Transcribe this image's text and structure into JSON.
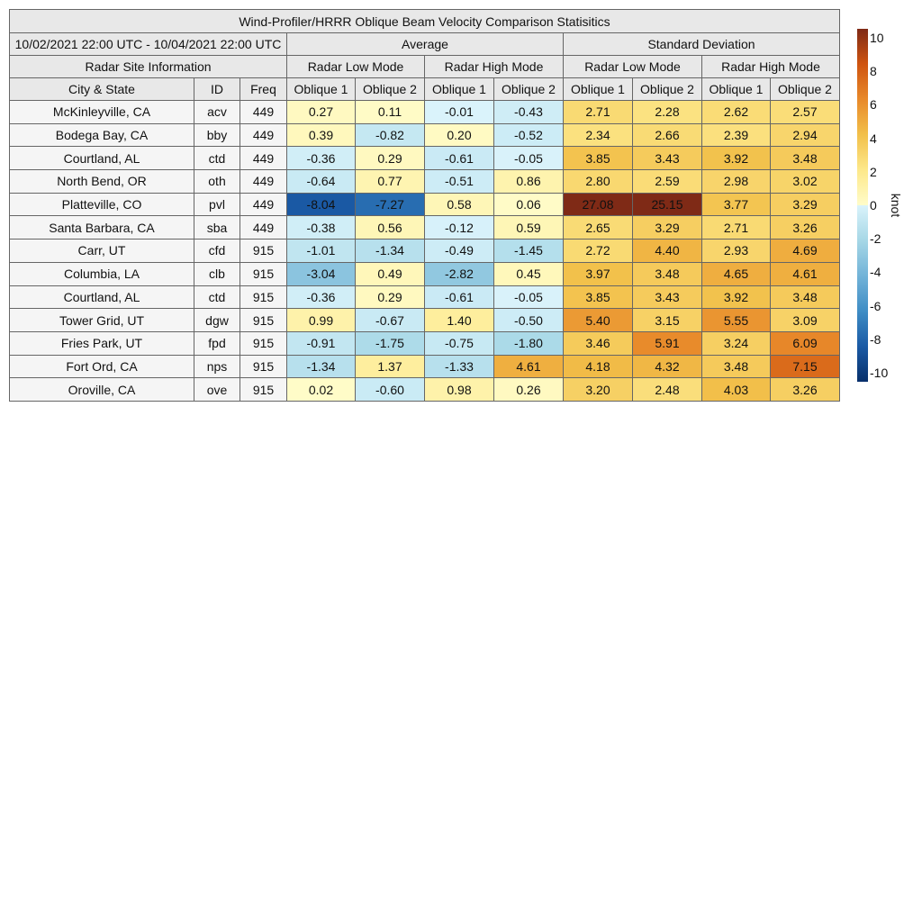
{
  "chart_data": {
    "type": "heatmap",
    "title": "Wind-Profiler/HRRR Oblique Beam Velocity Comparison Statisitics",
    "date_range": "10/02/2021 22:00 UTC - 10/04/2021 22:00 UTC",
    "group_headers": {
      "info": "Radar Site Information",
      "average": "Average",
      "std": "Standard Deviation"
    },
    "mode_headers": [
      "Radar Low Mode",
      "Radar High Mode",
      "Radar Low Mode",
      "Radar High Mode"
    ],
    "columns": [
      "City & State",
      "ID",
      "Freq",
      "Oblique 1",
      "Oblique 2",
      "Oblique 1",
      "Oblique 2",
      "Oblique 1",
      "Oblique 2",
      "Oblique 1",
      "Oblique 2"
    ],
    "rows": [
      {
        "city": "McKinleyville, CA",
        "id": "acv",
        "freq": "449",
        "values": [
          "0.27",
          "0.11",
          "-0.01",
          "-0.43",
          "2.71",
          "2.28",
          "2.62",
          "2.57"
        ]
      },
      {
        "city": "Bodega Bay, CA",
        "id": "bby",
        "freq": "449",
        "values": [
          "0.39",
          "-0.82",
          "0.20",
          "-0.52",
          "2.34",
          "2.66",
          "2.39",
          "2.94"
        ]
      },
      {
        "city": "Courtland, AL",
        "id": "ctd",
        "freq": "449",
        "values": [
          "-0.36",
          "0.29",
          "-0.61",
          "-0.05",
          "3.85",
          "3.43",
          "3.92",
          "3.48"
        ]
      },
      {
        "city": "North Bend, OR",
        "id": "oth",
        "freq": "449",
        "values": [
          "-0.64",
          "0.77",
          "-0.51",
          "0.86",
          "2.80",
          "2.59",
          "2.98",
          "3.02"
        ]
      },
      {
        "city": "Platteville, CO",
        "id": "pvl",
        "freq": "449",
        "values": [
          "-8.04",
          "-7.27",
          "0.58",
          "0.06",
          "27.08",
          "25.15",
          "3.77",
          "3.29"
        ]
      },
      {
        "city": "Santa Barbara, CA",
        "id": "sba",
        "freq": "449",
        "values": [
          "-0.38",
          "0.56",
          "-0.12",
          "0.59",
          "2.65",
          "3.29",
          "2.71",
          "3.26"
        ]
      },
      {
        "city": "Carr, UT",
        "id": "cfd",
        "freq": "915",
        "values": [
          "-1.01",
          "-1.34",
          "-0.49",
          "-1.45",
          "2.72",
          "4.40",
          "2.93",
          "4.69"
        ]
      },
      {
        "city": "Columbia, LA",
        "id": "clb",
        "freq": "915",
        "values": [
          "-3.04",
          "0.49",
          "-2.82",
          "0.45",
          "3.97",
          "3.48",
          "4.65",
          "4.61"
        ]
      },
      {
        "city": "Courtland, AL",
        "id": "ctd",
        "freq": "915",
        "values": [
          "-0.36",
          "0.29",
          "-0.61",
          "-0.05",
          "3.85",
          "3.43",
          "3.92",
          "3.48"
        ]
      },
      {
        "city": "Tower Grid, UT",
        "id": "dgw",
        "freq": "915",
        "values": [
          "0.99",
          "-0.67",
          "1.40",
          "-0.50",
          "5.40",
          "3.15",
          "5.55",
          "3.09"
        ]
      },
      {
        "city": "Fries Park, UT",
        "id": "fpd",
        "freq": "915",
        "values": [
          "-0.91",
          "-1.75",
          "-0.75",
          "-1.80",
          "3.46",
          "5.91",
          "3.24",
          "6.09"
        ]
      },
      {
        "city": "Fort Ord, CA",
        "id": "nps",
        "freq": "915",
        "values": [
          "-1.34",
          "1.37",
          "-1.33",
          "4.61",
          "4.18",
          "4.32",
          "3.48",
          "7.15"
        ]
      },
      {
        "city": "Oroville, CA",
        "id": "ove",
        "freq": "915",
        "values": [
          "0.02",
          "-0.60",
          "0.98",
          "0.26",
          "3.20",
          "2.48",
          "4.03",
          "3.26"
        ]
      }
    ],
    "colorbar": {
      "label": "knot",
      "range": [
        -10,
        10
      ],
      "ticks": [
        "10",
        "8",
        "6",
        "4",
        "2",
        "0",
        "-2",
        "-4",
        "-6",
        "-8",
        "-10"
      ],
      "stops": [
        [
          -10,
          "#08306b"
        ],
        [
          -8,
          "#1a5aa5"
        ],
        [
          -6,
          "#3f8dc5"
        ],
        [
          -4,
          "#72b3d8"
        ],
        [
          -2,
          "#a6d7e6"
        ],
        [
          0,
          "#daf3fb"
        ],
        [
          0.001,
          "#fffcc9"
        ],
        [
          2,
          "#fde88a"
        ],
        [
          4,
          "#f2c04a"
        ],
        [
          6,
          "#e8892a"
        ],
        [
          8,
          "#cf5410"
        ],
        [
          10,
          "#7f2a16"
        ]
      ]
    }
  }
}
